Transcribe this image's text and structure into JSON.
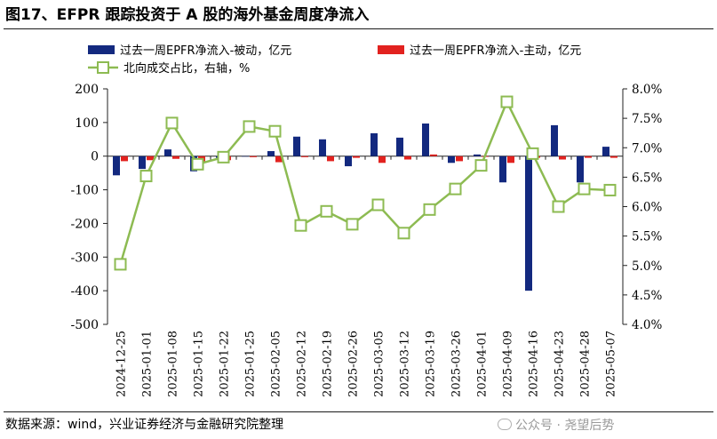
{
  "title": "图17、EFPR 跟踪投资于 A 股的海外基金周度净流入",
  "source": "数据来源：wind，兴业证券经济与金融研究院整理",
  "watermark": "公众号 · 尧望后势",
  "colors": {
    "passive": "#13297f",
    "active": "#e2221f",
    "ratio": "#8dbb52"
  },
  "chart_data": {
    "type": "bar",
    "categories": [
      "2024-12-25",
      "2025-01-01",
      "2025-01-08",
      "2025-01-15",
      "2025-01-22",
      "2025-01-25",
      "2025-02-05",
      "2025-02-12",
      "2025-02-19",
      "2025-02-26",
      "2025-03-05",
      "2025-03-12",
      "2025-03-19",
      "2025-03-26",
      "2025-04-01",
      "2025-04-09",
      "2025-04-16",
      "2025-04-23",
      "2025-04-28",
      "2025-05-07"
    ],
    "series": [
      {
        "name": "过去一周EPFR净流入-被动，亿元",
        "kind": "bar",
        "axis": "left",
        "values": [
          -57,
          -38,
          20,
          -45,
          -5,
          0,
          15,
          58,
          50,
          -30,
          68,
          55,
          97,
          -20,
          5,
          -78,
          -400,
          92,
          -78,
          28
        ]
      },
      {
        "name": "过去一周EPFR净流入-主动，亿元",
        "kind": "bar",
        "axis": "left",
        "values": [
          -15,
          -12,
          -8,
          -20,
          -12,
          -3,
          -18,
          -3,
          -15,
          -5,
          -20,
          -10,
          5,
          -15,
          -2,
          -20,
          -5,
          -10,
          -5,
          -5
        ]
      },
      {
        "name": "北向成交占比，右轴，%",
        "kind": "line",
        "axis": "right",
        "values": [
          5.02,
          6.52,
          7.42,
          6.72,
          6.84,
          7.36,
          7.28,
          5.68,
          5.92,
          5.7,
          6.03,
          5.55,
          5.95,
          6.3,
          6.7,
          7.78,
          6.9,
          6.0,
          6.3,
          6.28
        ]
      }
    ],
    "left_axis": {
      "min": -500,
      "max": 200,
      "step": 100,
      "ticks": [
        "200",
        "100",
        "0",
        "-100",
        "-200",
        "-300",
        "-400",
        "-500"
      ]
    },
    "right_axis": {
      "min": 4.0,
      "max": 8.0,
      "step": 0.5,
      "ticks": [
        "8.0%",
        "7.5%",
        "7.0%",
        "6.5%",
        "6.0%",
        "5.5%",
        "5.0%",
        "4.5%",
        "4.0%"
      ]
    },
    "grid": false,
    "legend_position": "top"
  }
}
